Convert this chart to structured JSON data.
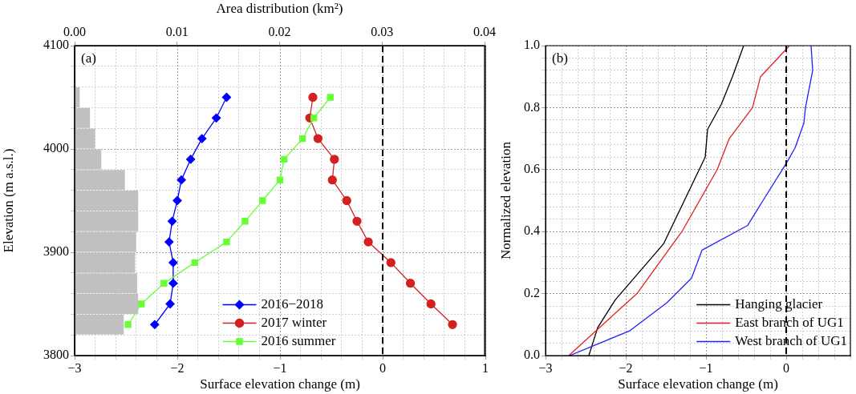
{
  "chart_data": [
    {
      "type": "bar",
      "orientation": "horizontal",
      "xlabel": "Area distribution (km²)",
      "tick_labels": "x",
      "color": "#c0c0c0",
      "xlim": [
        0,
        0.04
      ],
      "xticks": [
        {
          "value": 0,
          "label": "0.00"
        },
        {
          "value": 0.01,
          "label": "0.01"
        },
        {
          "value": 0.02,
          "label": "0.02"
        },
        {
          "value": 0.03,
          "label": "0.03"
        },
        {
          "value": 0.04,
          "label": "0.04"
        }
      ],
      "ylim": [
        3800,
        4100
      ],
      "yticks": [
        3800,
        3900,
        4000,
        4100
      ],
      "x": [
        3830,
        3850,
        3870,
        3890,
        3910,
        3930,
        3950,
        3970,
        3990,
        4010,
        4030,
        4050
      ],
      "values": [
        0.0048,
        0.0062,
        0.0061,
        0.0059,
        0.006,
        0.0062,
        0.0062,
        0.0049,
        0.0026,
        0.002,
        0.0015,
        0.0005
      ]
    },
    {
      "type": "line",
      "xlabel": "Surface elevation change (m)",
      "ylabel": "Elevation (m a.s.l.)",
      "annotations": [
        "(a)"
      ],
      "grid": true,
      "legend": "bottom",
      "marker": "circle",
      "line_style": "solid",
      "xlim": [
        -3,
        1
      ],
      "xticks": [
        {
          "value": -3,
          "label": "−3"
        },
        {
          "value": -2.8,
          "label": null
        },
        {
          "value": -2.6,
          "label": null
        },
        {
          "value": -2.4,
          "label": null
        },
        {
          "value": -2.2,
          "label": null
        },
        {
          "value": -2,
          "label": "−2"
        },
        {
          "value": -1.8,
          "label": null
        },
        {
          "value": -1.6,
          "label": null
        },
        {
          "value": -1.4,
          "label": null
        },
        {
          "value": -1.2,
          "label": null
        },
        {
          "value": -1,
          "label": "−1"
        },
        {
          "value": -0.8,
          "label": null
        },
        {
          "value": -0.6,
          "label": null
        },
        {
          "value": -0.4,
          "label": null
        },
        {
          "value": -0.2,
          "label": null
        },
        {
          "value": 0,
          "label": "0"
        },
        {
          "value": 0.2,
          "label": null
        },
        {
          "value": 0.4,
          "label": null
        },
        {
          "value": 0.6,
          "label": null
        },
        {
          "value": 0.8,
          "label": null
        },
        {
          "value": 1,
          "label": "1"
        }
      ],
      "ylim": [
        3800,
        4100
      ],
      "yticks": [
        3800,
        {
          "value": 3820,
          "label": null
        },
        {
          "value": 3840,
          "label": null
        },
        {
          "value": 3860,
          "label": null
        },
        {
          "value": 3880,
          "label": null
        },
        3900,
        {
          "value": 3920,
          "label": null
        },
        {
          "value": 3940,
          "label": null
        },
        {
          "value": 3960,
          "label": null
        },
        {
          "value": 3980,
          "label": null
        },
        4000,
        {
          "value": 4020,
          "label": null
        },
        {
          "value": 4040,
          "label": null
        },
        {
          "value": 4060,
          "label": null
        },
        {
          "value": 4080,
          "label": null
        },
        4100
      ],
      "ref_lines": [
        {
          "axis": "x",
          "value": 0,
          "color": "#000000",
          "line_style": "dashed"
        }
      ],
      "series": [
        {
          "type": "line",
          "name": "2016−2018",
          "color": "#0000ff",
          "marker": "diamond",
          "x": [
            -2.22,
            -2.07,
            -2.04,
            -2.04,
            -2.08,
            -2.05,
            -2.0,
            -1.96,
            -1.87,
            -1.76,
            -1.62,
            -1.52
          ],
          "values": [
            3830,
            3850,
            3870,
            3890,
            3910,
            3930,
            3950,
            3970,
            3990,
            4010,
            4030,
            4050
          ]
        },
        {
          "type": "line",
          "name": "2017 winter",
          "color": "#d42020",
          "marker": "circle",
          "x": [
            0.68,
            0.47,
            0.27,
            0.08,
            -0.14,
            -0.25,
            -0.35,
            -0.49,
            -0.47,
            -0.63,
            -0.71,
            -0.68
          ],
          "values": [
            3830,
            3850,
            3870,
            3890,
            3910,
            3930,
            3950,
            3970,
            3990,
            4010,
            4030,
            4050
          ]
        },
        {
          "type": "line",
          "name": "2016 summer",
          "color": "#66ff33",
          "marker": "square",
          "x": [
            -2.48,
            -2.35,
            -2.13,
            -1.83,
            -1.52,
            -1.34,
            -1.17,
            -1.0,
            -0.96,
            -0.78,
            -0.67,
            -0.51
          ],
          "values": [
            3830,
            3850,
            3870,
            3890,
            3910,
            3930,
            3950,
            3970,
            3990,
            4010,
            4030,
            4050
          ]
        }
      ]
    },
    {
      "type": "line",
      "xlabel": "Surface elevation change (m)",
      "ylabel": "Normalized elevation",
      "annotations": [
        "(b)"
      ],
      "grid": true,
      "legend": "bottom right",
      "marker": "none",
      "line_style": "solid",
      "xlim": [
        -3,
        0.8
      ],
      "xticks": [
        {
          "value": -3,
          "label": "−3"
        },
        {
          "value": -2.8,
          "label": null
        },
        {
          "value": -2.6,
          "label": null
        },
        {
          "value": -2.4,
          "label": null
        },
        {
          "value": -2.2,
          "label": null
        },
        {
          "value": -2,
          "label": "−2"
        },
        {
          "value": -1.8,
          "label": null
        },
        {
          "value": -1.6,
          "label": null
        },
        {
          "value": -1.4,
          "label": null
        },
        {
          "value": -1.2,
          "label": null
        },
        {
          "value": -1,
          "label": "−1"
        },
        {
          "value": -0.8,
          "label": null
        },
        {
          "value": -0.6,
          "label": null
        },
        {
          "value": -0.4,
          "label": null
        },
        {
          "value": -0.2,
          "label": null
        },
        {
          "value": 0,
          "label": "0"
        },
        {
          "value": 0.2,
          "label": null
        },
        {
          "value": 0.4,
          "label": null
        },
        {
          "value": 0.6,
          "label": null
        },
        {
          "value": 0.8,
          "label": null
        }
      ],
      "ylim": [
        0,
        1
      ],
      "yticks": [
        {
          "value": 0,
          "label": "0.0"
        },
        {
          "value": 0.04,
          "label": null
        },
        {
          "value": 0.08,
          "label": null
        },
        {
          "value": 0.12,
          "label": null
        },
        {
          "value": 0.16,
          "label": null
        },
        {
          "value": 0.2,
          "label": "0.2"
        },
        {
          "value": 0.24,
          "label": null
        },
        {
          "value": 0.28,
          "label": null
        },
        {
          "value": 0.32,
          "label": null
        },
        {
          "value": 0.36,
          "label": null
        },
        {
          "value": 0.4,
          "label": "0.4"
        },
        {
          "value": 0.44,
          "label": null
        },
        {
          "value": 0.48,
          "label": null
        },
        {
          "value": 0.52,
          "label": null
        },
        {
          "value": 0.56,
          "label": null
        },
        {
          "value": 0.6,
          "label": "0.6"
        },
        {
          "value": 0.64,
          "label": null
        },
        {
          "value": 0.68,
          "label": null
        },
        {
          "value": 0.72,
          "label": null
        },
        {
          "value": 0.76,
          "label": null
        },
        {
          "value": 0.8,
          "label": "0.8"
        },
        {
          "value": 0.84,
          "label": null
        },
        {
          "value": 0.88,
          "label": null
        },
        {
          "value": 0.92,
          "label": null
        },
        {
          "value": 0.96,
          "label": null
        },
        {
          "value": 1,
          "label": "1.0"
        }
      ],
      "ref_lines": [
        {
          "axis": "x",
          "value": 0,
          "color": "#000000",
          "line_style": "dashed"
        }
      ],
      "series": [
        {
          "type": "line",
          "name": "Hanging glacier",
          "color": "#000000",
          "x": [
            -2.46,
            -2.35,
            -2.13,
            -1.53,
            -1.01,
            -0.98,
            -0.81,
            -0.67,
            -0.53
          ],
          "values": [
            0,
            0.09,
            0.18,
            0.36,
            0.64,
            0.73,
            0.81,
            0.9,
            1.0
          ]
        },
        {
          "type": "line",
          "name": "East branch of UG1",
          "color": "#e02020",
          "x": [
            -2.71,
            -1.86,
            -1.3,
            -0.86,
            -0.71,
            -0.42,
            -0.32,
            -0.03,
            0.04
          ],
          "values": [
            0,
            0.2,
            0.4,
            0.6,
            0.7,
            0.8,
            0.9,
            0.98,
            1.0
          ]
        },
        {
          "type": "line",
          "name": "West branch of UG1",
          "color": "#2020ff",
          "x": [
            -2.7,
            -1.95,
            -1.49,
            -1.18,
            -1.05,
            -0.48,
            -0.29,
            0,
            0.11,
            0.22,
            0.24,
            0.33,
            0.31
          ],
          "values": [
            0,
            0.08,
            0.17,
            0.25,
            0.34,
            0.42,
            0.5,
            0.62,
            0.67,
            0.75,
            0.8,
            0.92,
            1.0
          ]
        }
      ]
    }
  ]
}
